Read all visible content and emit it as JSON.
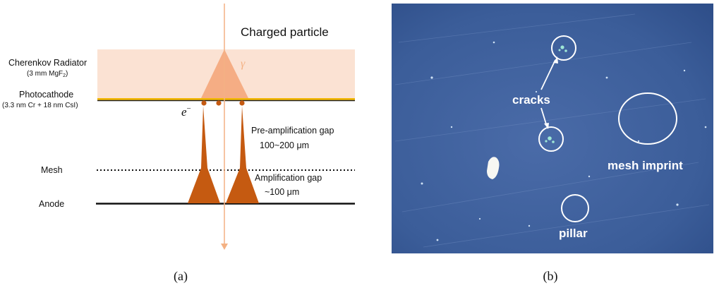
{
  "panel_a": {
    "charged_particle": "Charged particle",
    "radiator_label": "Cherenkov Radiator",
    "radiator_detail_prefix": "(3 mm MgF",
    "radiator_detail_sub": "2",
    "radiator_detail_suffix": ")",
    "photocathode_label": "Photocathode",
    "photocathode_detail": "(3.3 nm Cr + 18 nm CsI)",
    "gamma_symbol": "γ",
    "electron_base": "e",
    "electron_sup": "−",
    "preamp_line1": "Pre-amplification gap",
    "preamp_line2": "100~200 μm",
    "mesh_label": "Mesh",
    "amp_line1": "Amplification gap",
    "amp_line2": "~100 μm",
    "anode_label": "Anode",
    "caption": "(a)",
    "colors": {
      "radiator_fill": "#fbe2d3",
      "cone_fill": "#f5ad84",
      "avalanche_fill": "#c55a11",
      "particle_line": "#f4b183",
      "photocathode_stripe": "#f2b705"
    }
  },
  "panel_b": {
    "label_cracks": "cracks",
    "label_mesh_imprint": "mesh imprint",
    "label_pillar": "pillar",
    "caption": "(b)",
    "colors": {
      "photo_background": "#3d5f9c",
      "annotation": "#ffffff"
    }
  }
}
